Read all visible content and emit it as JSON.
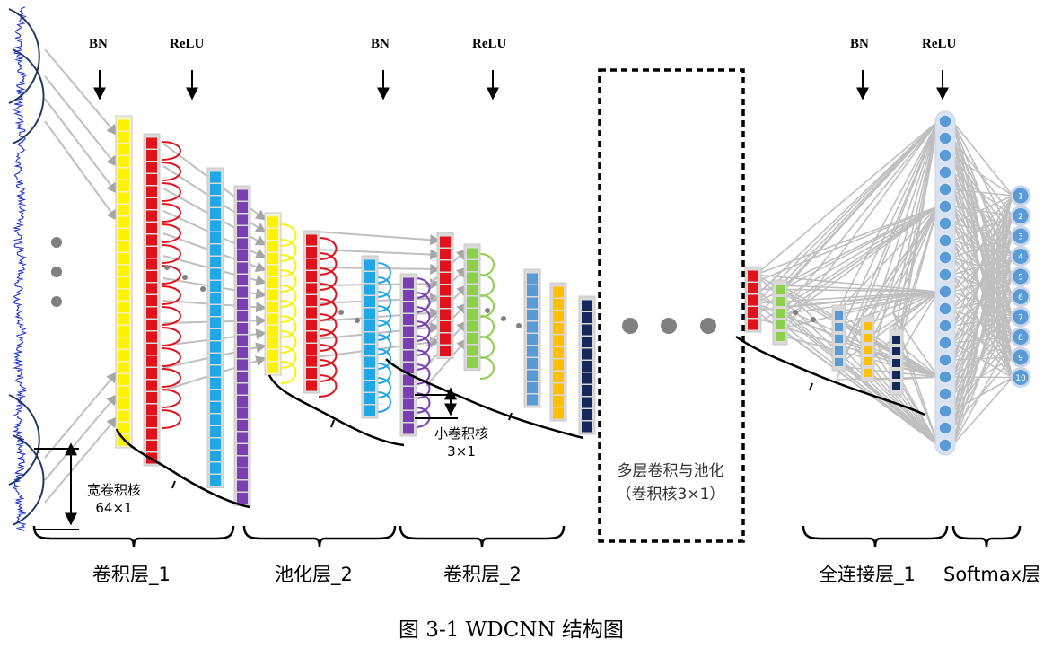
{
  "annotations": {
    "bn": "BN",
    "relu": "ReLU"
  },
  "notes": {
    "wide_kernel": "宽卷积核",
    "wide_kernel_size": "64×1",
    "small_kernel": "小卷积核",
    "small_kernel_size": "3×1",
    "multi_layer": "多层卷积与池化",
    "multi_layer_kernel": "（卷积核3×1）"
  },
  "sections": {
    "conv1": "卷积层_1",
    "pool2": "池化层_2",
    "conv2": "卷积层_2",
    "fc1": "全连接层_1",
    "softmax": "Softmax层"
  },
  "output_nodes": [
    "1",
    "2",
    "3",
    "4",
    "5",
    "6",
    "7",
    "8",
    "9",
    "10"
  ],
  "caption": "图 3-1 WDCNN 结构图",
  "colors": {
    "signal": "#1a2fd6",
    "yellow": "#fff200",
    "red": "#e0121c",
    "cyan": "#1fa8e6",
    "purple": "#7a3fb0",
    "green": "#8ccf4a",
    "lightblue": "#5b9bd5",
    "gold": "#ffc000",
    "navy": "#14285c",
    "node": "#5b9bd5",
    "arrow": "#bfbfbf",
    "arc_dark": "#1f3864",
    "dot": "#808080"
  }
}
